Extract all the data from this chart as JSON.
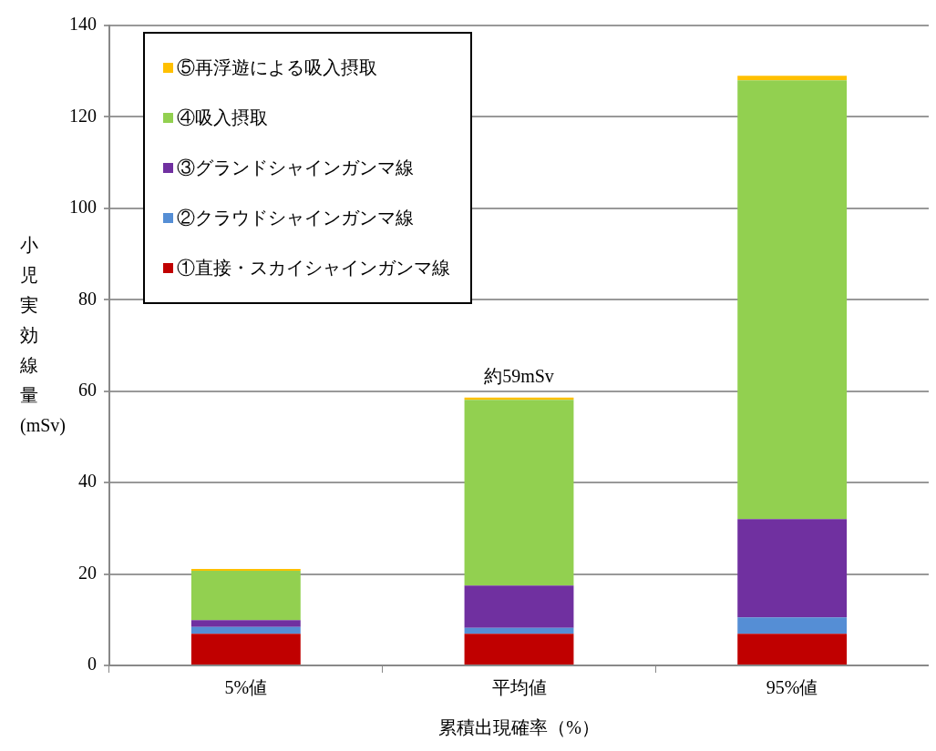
{
  "chart_data": {
    "type": "bar",
    "stacked": true,
    "xlabel": "累積出現確率（%）",
    "ylabel": "小児実効線量(mSv)",
    "categories": [
      "5%値",
      "平均値",
      "95%値"
    ],
    "series": [
      {
        "name": "①直接・スカイシャインガンマ線",
        "color": "#c00000",
        "values": [
          6.9,
          6.9,
          6.9
        ]
      },
      {
        "name": "②クラウドシャインガンマ線",
        "color": "#558ed5",
        "values": [
          1.5,
          1.3,
          3.6
        ]
      },
      {
        "name": "③グランドシャインガンマ線",
        "color": "#7030a0",
        "values": [
          1.5,
          9.3,
          21.5
        ]
      },
      {
        "name": "④吸入摂取",
        "color": "#92d050",
        "values": [
          10.8,
          40.6,
          96.0
        ]
      },
      {
        "name": "⑤再浮遊による吸入摂取",
        "color": "#ffc000",
        "values": [
          0.4,
          0.5,
          1.0
        ]
      }
    ],
    "ylim": [
      0,
      140
    ],
    "yticks": [
      0,
      20,
      40,
      60,
      80,
      100,
      120,
      140
    ],
    "grid": "y",
    "legend": "top left",
    "annotations": [
      {
        "text": "約59mSv",
        "x": "平均値",
        "y": 58.6
      }
    ]
  }
}
